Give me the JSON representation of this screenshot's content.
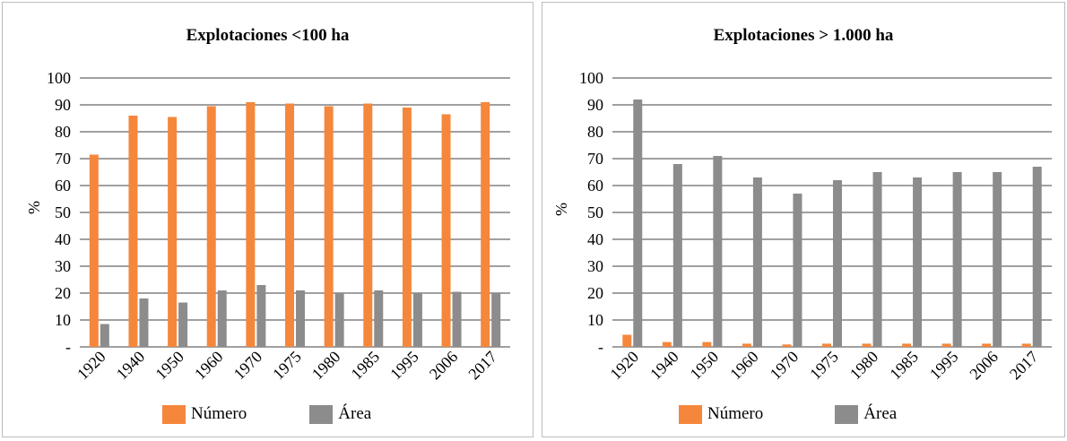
{
  "colors": {
    "numero": "#f5873c",
    "area": "#8c8c8c",
    "grid": "#000000"
  },
  "chart_data": [
    {
      "type": "bar",
      "title": "Explotaciones <100 ha",
      "ylabel": "%",
      "ylim": [
        0,
        100
      ],
      "ytick_labels": [
        "-",
        "10",
        "20",
        "30",
        "40",
        "50",
        "60",
        "70",
        "80",
        "90",
        "100"
      ],
      "categories": [
        "1920",
        "1940",
        "1950",
        "1960",
        "1970",
        "1975",
        "1980",
        "1985",
        "1995",
        "2006",
        "2017"
      ],
      "series": [
        {
          "name": "Número",
          "values": [
            71.5,
            86,
            85.5,
            89.5,
            91,
            90.5,
            89.5,
            90.5,
            89,
            86.5,
            91
          ]
        },
        {
          "name": "Área",
          "values": [
            8.5,
            18,
            16.5,
            21,
            23,
            21,
            20,
            21,
            20,
            20.5,
            20
          ]
        }
      ],
      "legend": "bottom"
    },
    {
      "type": "bar",
      "title": "Explotaciones > 1.000 ha",
      "ylabel": "%",
      "ylim": [
        0,
        100
      ],
      "ytick_labels": [
        "-",
        "10",
        "20",
        "30",
        "40",
        "50",
        "60",
        "70",
        "80",
        "90",
        "100"
      ],
      "categories": [
        "1920",
        "1940",
        "1950",
        "1960",
        "1970",
        "1975",
        "1980",
        "1985",
        "1995",
        "2006",
        "2017"
      ],
      "series": [
        {
          "name": "Número",
          "values": [
            4.5,
            1.8,
            1.8,
            1.2,
            0.9,
            1.2,
            1.2,
            1.2,
            1.2,
            1.2,
            1.2
          ]
        },
        {
          "name": "Área",
          "values": [
            92,
            68,
            71,
            63,
            57,
            62,
            65,
            63,
            65,
            65,
            67
          ]
        }
      ],
      "legend": "bottom"
    }
  ]
}
